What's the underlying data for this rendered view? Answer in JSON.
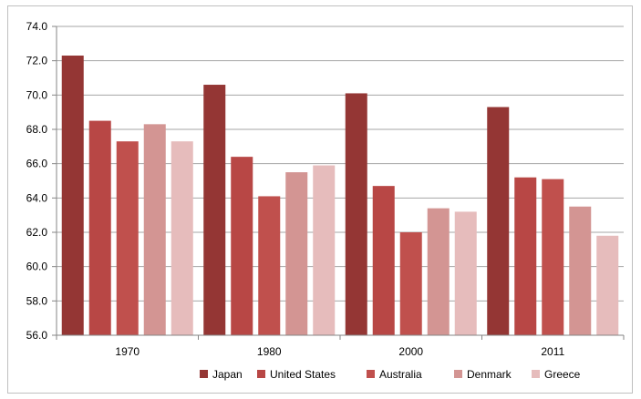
{
  "chart_data": {
    "type": "bar",
    "title": "",
    "xlabel": "",
    "ylabel": "",
    "categories": [
      "1970",
      "1980",
      "2000",
      "2011"
    ],
    "ylim": [
      56.0,
      74.0
    ],
    "ytick_step": 2.0,
    "ytick_labels": [
      "56.0",
      "58.0",
      "60.0",
      "62.0",
      "64.0",
      "66.0",
      "68.0",
      "70.0",
      "72.0",
      "74.0"
    ],
    "grid": true,
    "legend_position": "bottom",
    "series": [
      {
        "name": "Japan",
        "color": "#943634",
        "values": [
          72.3,
          70.6,
          70.1,
          69.3
        ]
      },
      {
        "name": "United States",
        "color": "#b84745",
        "values": [
          68.5,
          66.4,
          64.7,
          65.2
        ]
      },
      {
        "name": "Australia",
        "color": "#c0504d",
        "values": [
          67.3,
          64.1,
          62.0,
          65.1
        ]
      },
      {
        "name": "Denmark",
        "color": "#d39593",
        "values": [
          68.3,
          65.5,
          63.4,
          63.5
        ]
      },
      {
        "name": "Greece",
        "color": "#e6bcbc",
        "values": [
          67.3,
          65.9,
          63.2,
          61.8
        ]
      }
    ]
  }
}
